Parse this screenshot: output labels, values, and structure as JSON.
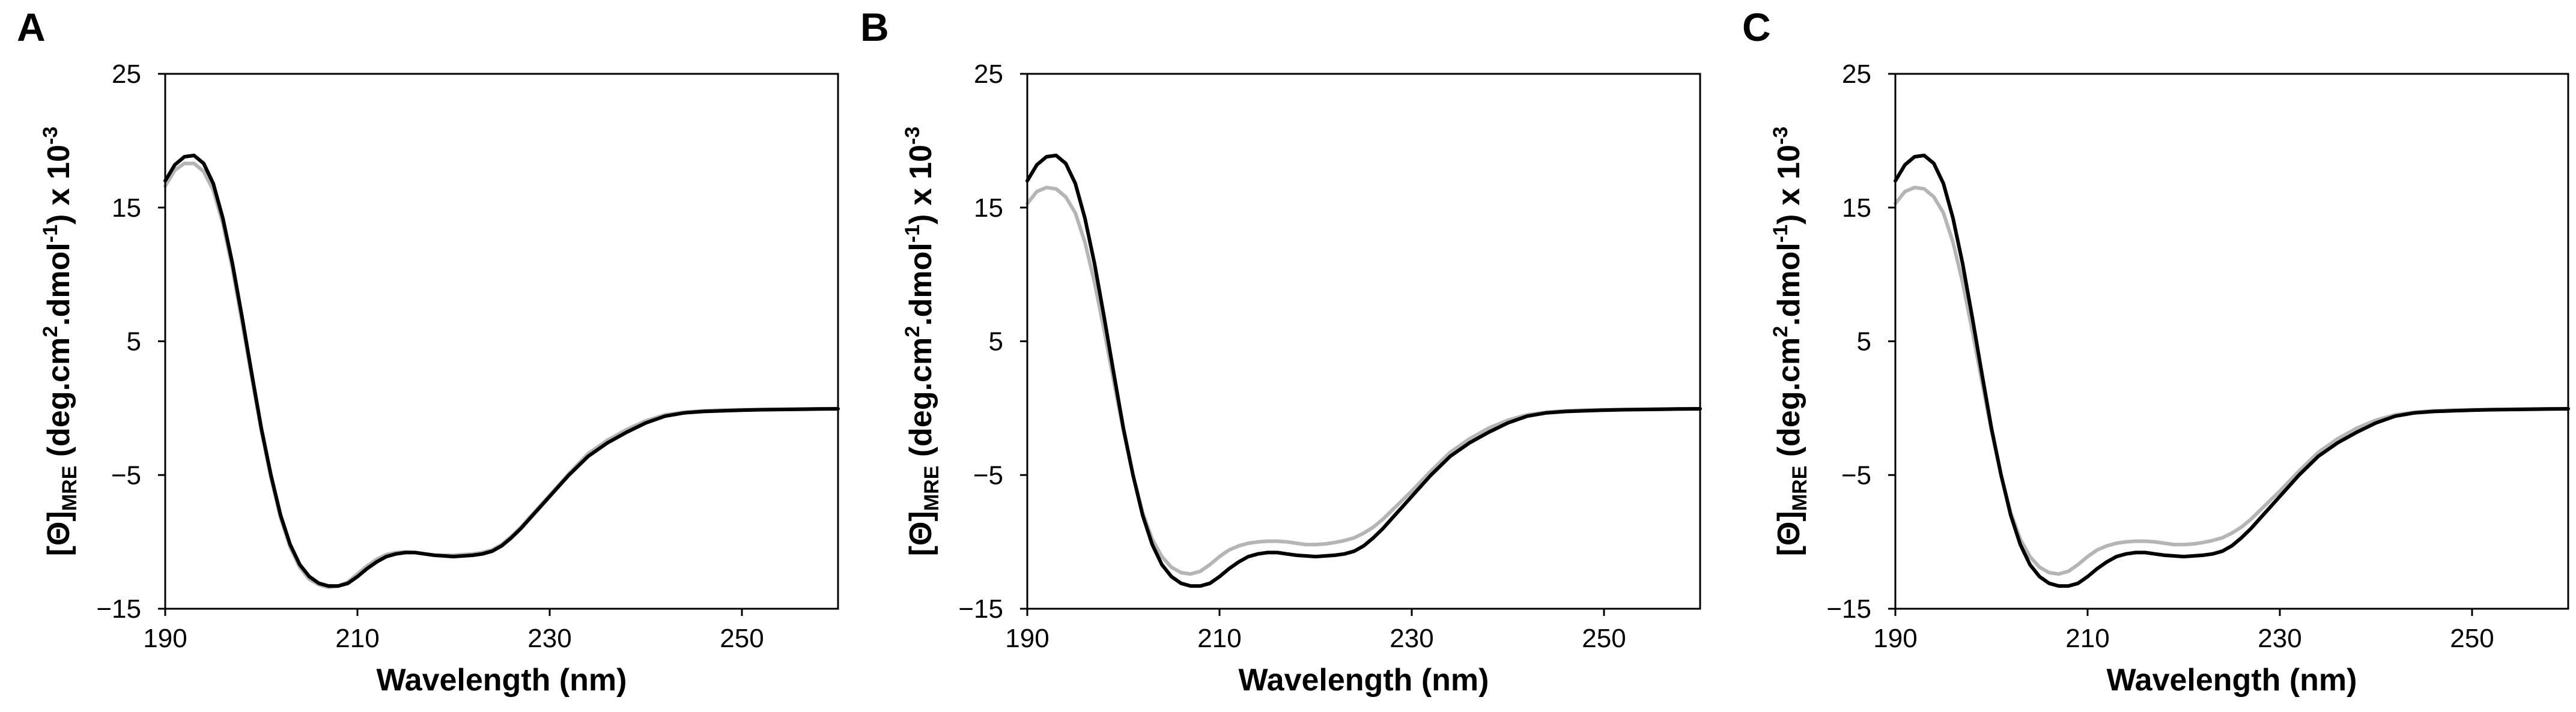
{
  "figure": {
    "panel_letters": [
      "A",
      "B",
      "C"
    ]
  },
  "colors": {
    "series_primary": "#000000",
    "series_secondary": "#b5b5b5",
    "axis": "#000000"
  },
  "chart_data": [
    {
      "panel": "A",
      "type": "line",
      "xlabel": "Wavelength (nm)",
      "ylabel": {
        "main": "[Θ]",
        "subscript": "MRE",
        "unit": " (deg.cm",
        "sup1": "2",
        "mid": ".dmol",
        "sup2": "-1",
        "tail": ") x 10",
        "sup3": "-3"
      },
      "xlim": [
        190,
        260
      ],
      "ylim": [
        -15,
        25
      ],
      "xticks": [
        190,
        210,
        230,
        250
      ],
      "yticks": [
        -15,
        -5,
        5,
        15,
        25
      ],
      "ytick_labels": [
        "−15",
        "−5",
        "5",
        "15",
        "25"
      ],
      "series": [
        {
          "name": "black",
          "color": "#000000",
          "x": [
            190,
            191,
            192,
            193,
            194,
            195,
            196,
            197,
            198,
            199,
            200,
            201,
            202,
            203,
            204,
            205,
            206,
            207,
            208,
            209,
            210,
            211,
            212,
            213,
            214,
            215,
            216,
            217,
            218,
            219,
            220,
            221,
            222,
            223,
            224,
            225,
            226,
            227,
            228,
            229,
            230,
            232,
            234,
            236,
            238,
            240,
            242,
            244,
            246,
            248,
            250,
            252,
            254,
            256,
            258,
            260
          ],
          "y": [
            17,
            18.2,
            18.8,
            18.9,
            18.3,
            16.8,
            14.2,
            10.8,
            6.8,
            2.6,
            -1.5,
            -5.0,
            -8.0,
            -10.2,
            -11.7,
            -12.6,
            -13.1,
            -13.3,
            -13.3,
            -13.1,
            -12.6,
            -12.0,
            -11.5,
            -11.1,
            -10.9,
            -10.8,
            -10.8,
            -10.9,
            -11.0,
            -11.05,
            -11.1,
            -11.05,
            -11.0,
            -10.9,
            -10.7,
            -10.3,
            -9.7,
            -9.0,
            -8.2,
            -7.4,
            -6.6,
            -5.0,
            -3.6,
            -2.6,
            -1.8,
            -1.1,
            -0.6,
            -0.35,
            -0.25,
            -0.2,
            -0.15,
            -0.12,
            -0.1,
            -0.08,
            -0.06,
            -0.05
          ]
        },
        {
          "name": "gray",
          "color": "#b5b5b5",
          "x": [
            190,
            191,
            192,
            193,
            194,
            195,
            196,
            197,
            198,
            199,
            200,
            201,
            202,
            203,
            204,
            205,
            206,
            207,
            208,
            209,
            210,
            211,
            212,
            213,
            214,
            215,
            216,
            217,
            218,
            219,
            220,
            221,
            222,
            223,
            224,
            225,
            226,
            227,
            228,
            229,
            230,
            232,
            234,
            236,
            238,
            240,
            242,
            244,
            246,
            248,
            250,
            252,
            254,
            256,
            258,
            260
          ],
          "y": [
            16.6,
            17.8,
            18.3,
            18.3,
            17.7,
            16.3,
            13.8,
            10.4,
            6.4,
            2.3,
            -1.7,
            -5.2,
            -8.2,
            -10.4,
            -11.9,
            -12.8,
            -13.2,
            -13.4,
            -13.3,
            -13.0,
            -12.4,
            -11.8,
            -11.3,
            -10.95,
            -10.8,
            -10.75,
            -10.8,
            -10.9,
            -11.0,
            -11.0,
            -11.0,
            -10.95,
            -10.9,
            -10.8,
            -10.6,
            -10.2,
            -9.6,
            -8.9,
            -8.1,
            -7.3,
            -6.5,
            -4.9,
            -3.4,
            -2.4,
            -1.6,
            -0.95,
            -0.5,
            -0.3,
            -0.2,
            -0.15,
            -0.12,
            -0.1,
            -0.08,
            -0.06,
            -0.05,
            -0.04
          ]
        }
      ]
    },
    {
      "panel": "B",
      "type": "line",
      "xlabel": "Wavelength (nm)",
      "ylabel": {
        "main": "[Θ]",
        "subscript": "MRE",
        "unit": " (deg.cm",
        "sup1": "2",
        "mid": ".dmol",
        "sup2": "-1",
        "tail": ") x 10",
        "sup3": "-3"
      },
      "xlim": [
        190,
        260
      ],
      "ylim": [
        -15,
        25
      ],
      "xticks": [
        190,
        210,
        230,
        250
      ],
      "yticks": [
        -15,
        -5,
        5,
        15,
        25
      ],
      "ytick_labels": [
        "−15",
        "−5",
        "5",
        "15",
        "25"
      ],
      "series": [
        {
          "name": "black",
          "color": "#000000",
          "x": [
            190,
            191,
            192,
            193,
            194,
            195,
            196,
            197,
            198,
            199,
            200,
            201,
            202,
            203,
            204,
            205,
            206,
            207,
            208,
            209,
            210,
            211,
            212,
            213,
            214,
            215,
            216,
            217,
            218,
            219,
            220,
            221,
            222,
            223,
            224,
            225,
            226,
            227,
            228,
            229,
            230,
            232,
            234,
            236,
            238,
            240,
            242,
            244,
            246,
            248,
            250,
            252,
            254,
            256,
            258,
            260
          ],
          "y": [
            17,
            18.2,
            18.8,
            18.9,
            18.3,
            16.8,
            14.2,
            10.8,
            6.8,
            2.6,
            -1.5,
            -5.0,
            -8.0,
            -10.2,
            -11.7,
            -12.6,
            -13.1,
            -13.3,
            -13.3,
            -13.1,
            -12.6,
            -12.0,
            -11.5,
            -11.1,
            -10.9,
            -10.8,
            -10.8,
            -10.9,
            -11.0,
            -11.05,
            -11.1,
            -11.05,
            -11.0,
            -10.9,
            -10.7,
            -10.3,
            -9.7,
            -9.0,
            -8.2,
            -7.4,
            -6.6,
            -5.0,
            -3.6,
            -2.6,
            -1.8,
            -1.1,
            -0.6,
            -0.35,
            -0.25,
            -0.2,
            -0.15,
            -0.12,
            -0.1,
            -0.08,
            -0.06,
            -0.05
          ]
        },
        {
          "name": "gray",
          "color": "#b5b5b5",
          "x": [
            190,
            191,
            192,
            193,
            194,
            195,
            196,
            197,
            198,
            199,
            200,
            201,
            202,
            203,
            204,
            205,
            206,
            207,
            208,
            209,
            210,
            211,
            212,
            213,
            214,
            215,
            216,
            217,
            218,
            219,
            220,
            221,
            222,
            223,
            224,
            225,
            226,
            227,
            228,
            229,
            230,
            232,
            234,
            236,
            238,
            240,
            242,
            244,
            246,
            248,
            250,
            252,
            254,
            256,
            258,
            260
          ],
          "y": [
            15.3,
            16.2,
            16.5,
            16.4,
            15.8,
            14.6,
            12.4,
            9.4,
            5.8,
            2.0,
            -1.7,
            -5.0,
            -7.8,
            -9.8,
            -11.1,
            -11.9,
            -12.3,
            -12.4,
            -12.2,
            -11.7,
            -11.1,
            -10.6,
            -10.3,
            -10.1,
            -10.0,
            -9.95,
            -9.95,
            -10.0,
            -10.1,
            -10.2,
            -10.2,
            -10.15,
            -10.05,
            -9.9,
            -9.7,
            -9.35,
            -8.9,
            -8.3,
            -7.6,
            -6.9,
            -6.2,
            -4.7,
            -3.3,
            -2.3,
            -1.5,
            -0.9,
            -0.5,
            -0.3,
            -0.2,
            -0.15,
            -0.12,
            -0.1,
            -0.08,
            -0.06,
            -0.05,
            -0.04
          ]
        }
      ]
    },
    {
      "panel": "C",
      "type": "line",
      "xlabel": "Wavelength (nm)",
      "ylabel": {
        "main": "[Θ]",
        "subscript": "MRE",
        "unit": " (deg.cm",
        "sup1": "2",
        "mid": ".dmol",
        "sup2": "-1",
        "tail": ") x 10",
        "sup3": "-3"
      },
      "xlim": [
        190,
        260
      ],
      "ylim": [
        -15,
        25
      ],
      "xticks": [
        190,
        210,
        230,
        250
      ],
      "yticks": [
        -15,
        -5,
        5,
        15,
        25
      ],
      "ytick_labels": [
        "−15",
        "−5",
        "5",
        "15",
        "25"
      ],
      "series": [
        {
          "name": "black",
          "color": "#000000",
          "x": [
            190,
            191,
            192,
            193,
            194,
            195,
            196,
            197,
            198,
            199,
            200,
            201,
            202,
            203,
            204,
            205,
            206,
            207,
            208,
            209,
            210,
            211,
            212,
            213,
            214,
            215,
            216,
            217,
            218,
            219,
            220,
            221,
            222,
            223,
            224,
            225,
            226,
            227,
            228,
            229,
            230,
            232,
            234,
            236,
            238,
            240,
            242,
            244,
            246,
            248,
            250,
            252,
            254,
            256,
            258,
            260
          ],
          "y": [
            17,
            18.2,
            18.8,
            18.9,
            18.3,
            16.8,
            14.2,
            10.8,
            6.8,
            2.6,
            -1.5,
            -5.0,
            -8.0,
            -10.2,
            -11.7,
            -12.6,
            -13.1,
            -13.3,
            -13.3,
            -13.1,
            -12.6,
            -12.0,
            -11.5,
            -11.1,
            -10.9,
            -10.8,
            -10.8,
            -10.9,
            -11.0,
            -11.05,
            -11.1,
            -11.05,
            -11.0,
            -10.9,
            -10.7,
            -10.3,
            -9.7,
            -9.0,
            -8.2,
            -7.4,
            -6.6,
            -5.0,
            -3.6,
            -2.6,
            -1.8,
            -1.1,
            -0.6,
            -0.35,
            -0.25,
            -0.2,
            -0.15,
            -0.12,
            -0.1,
            -0.08,
            -0.06,
            -0.05
          ]
        },
        {
          "name": "gray",
          "color": "#b5b5b5",
          "x": [
            190,
            191,
            192,
            193,
            194,
            195,
            196,
            197,
            198,
            199,
            200,
            201,
            202,
            203,
            204,
            205,
            206,
            207,
            208,
            209,
            210,
            211,
            212,
            213,
            214,
            215,
            216,
            217,
            218,
            219,
            220,
            221,
            222,
            223,
            224,
            225,
            226,
            227,
            228,
            229,
            230,
            232,
            234,
            236,
            238,
            240,
            242,
            244,
            246,
            248,
            250,
            252,
            254,
            256,
            258,
            260
          ],
          "y": [
            15.3,
            16.2,
            16.5,
            16.4,
            15.8,
            14.6,
            12.4,
            9.4,
            5.8,
            2.0,
            -1.7,
            -5.0,
            -7.8,
            -9.8,
            -11.1,
            -11.9,
            -12.3,
            -12.4,
            -12.2,
            -11.7,
            -11.1,
            -10.6,
            -10.3,
            -10.1,
            -10.0,
            -9.95,
            -9.95,
            -10.0,
            -10.1,
            -10.2,
            -10.2,
            -10.15,
            -10.05,
            -9.9,
            -9.7,
            -9.35,
            -8.9,
            -8.3,
            -7.6,
            -6.9,
            -6.2,
            -4.7,
            -3.3,
            -2.3,
            -1.5,
            -0.9,
            -0.5,
            -0.3,
            -0.2,
            -0.15,
            -0.12,
            -0.1,
            -0.08,
            -0.06,
            -0.05,
            -0.04
          ]
        }
      ]
    }
  ]
}
